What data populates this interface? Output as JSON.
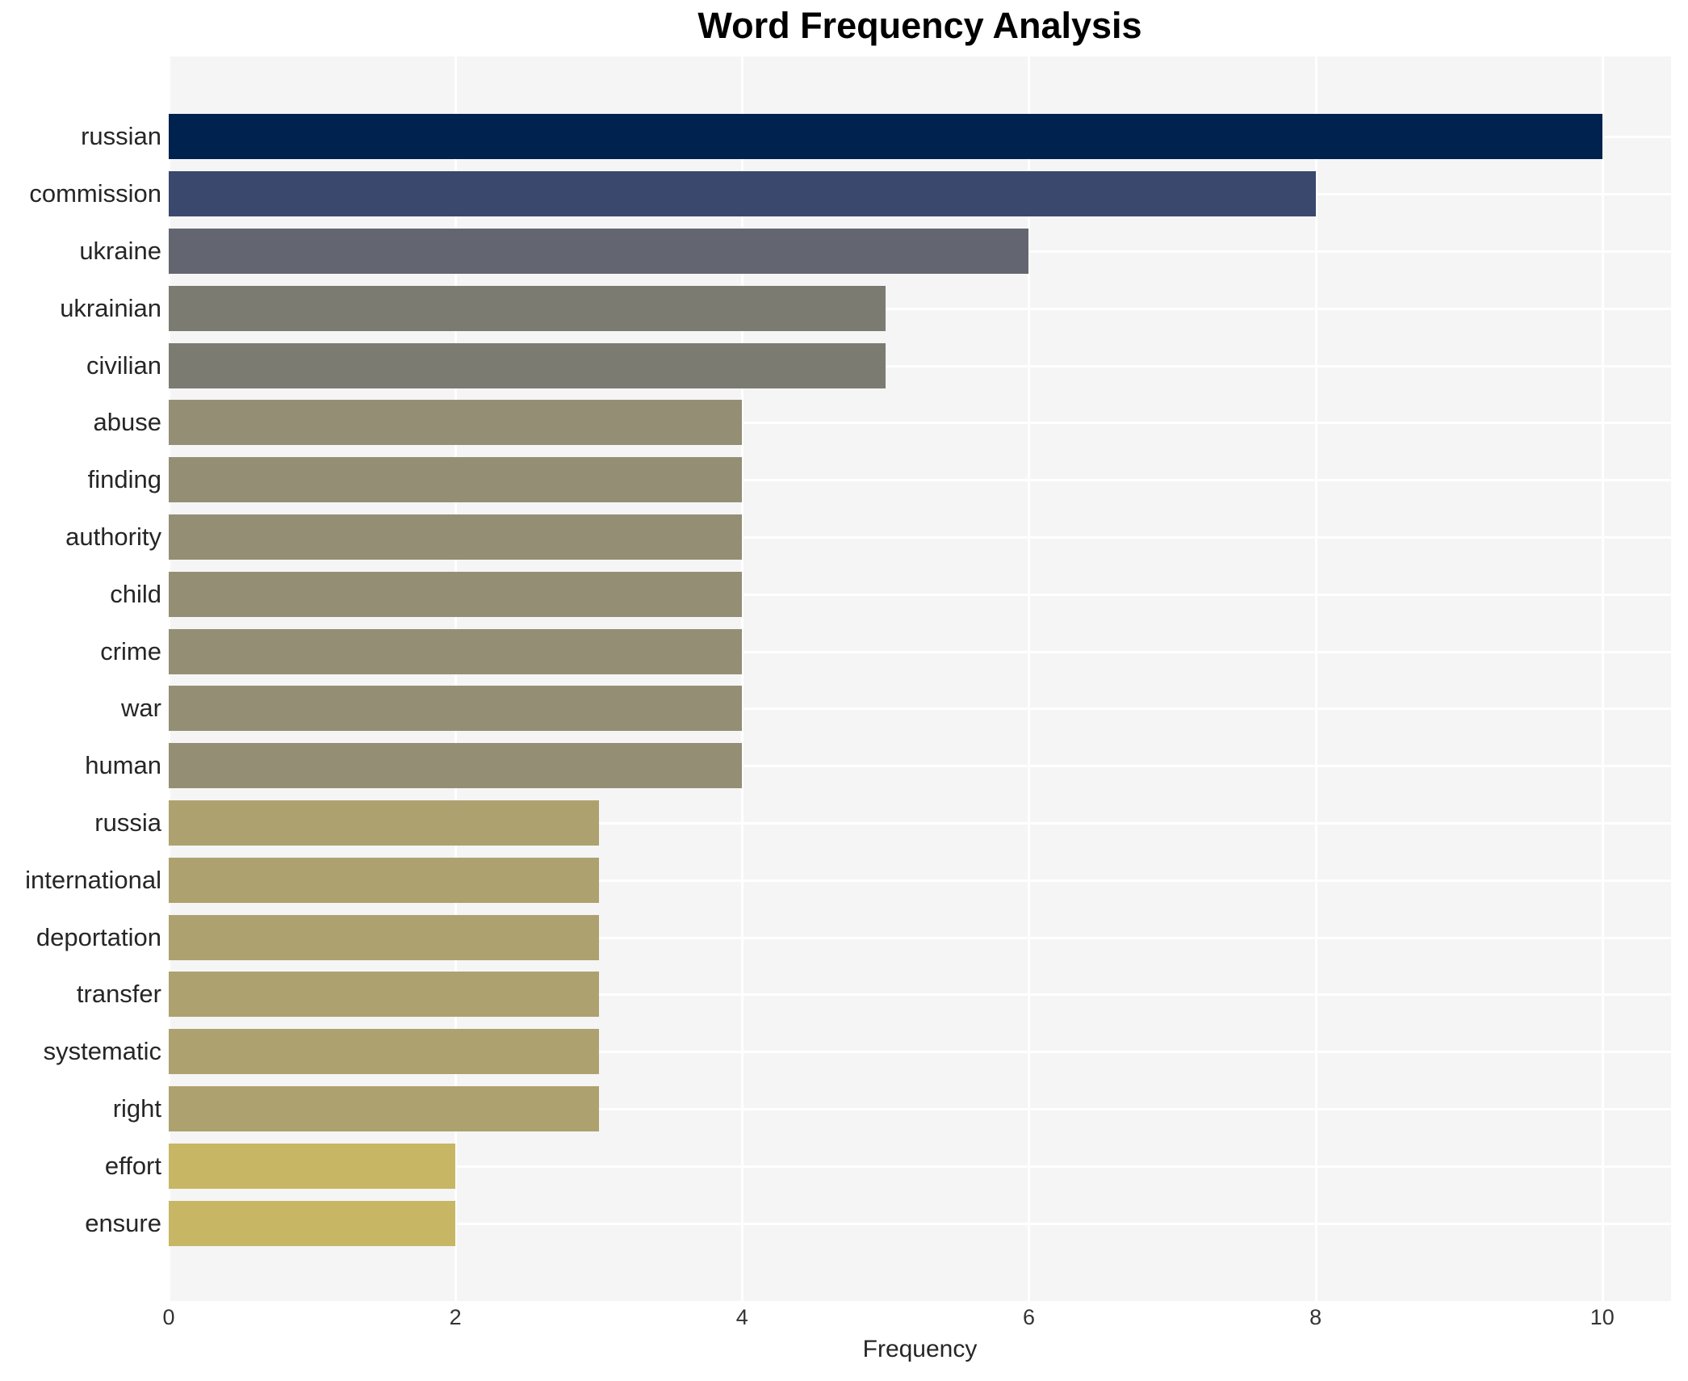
{
  "title": "Word Frequency Analysis",
  "xlabel": "Frequency",
  "chart_data": {
    "type": "bar",
    "orientation": "horizontal",
    "title": "Word Frequency Analysis",
    "xlabel": "Frequency",
    "categories": [
      "russian",
      "commission",
      "ukraine",
      "ukrainian",
      "civilian",
      "abuse",
      "finding",
      "authority",
      "child",
      "crime",
      "war",
      "human",
      "russia",
      "international",
      "deportation",
      "transfer",
      "systematic",
      "right",
      "effort",
      "ensure"
    ],
    "values": [
      10,
      8,
      6,
      5,
      5,
      4,
      4,
      4,
      4,
      4,
      4,
      4,
      3,
      3,
      3,
      3,
      3,
      3,
      2,
      2
    ],
    "bar_colors": [
      "#00224e",
      "#3a486e",
      "#636670",
      "#7b7b72",
      "#7b7b72",
      "#948f74",
      "#948f74",
      "#948f74",
      "#948f74",
      "#948f74",
      "#948f74",
      "#948f74",
      "#ada26f",
      "#ada26f",
      "#ada26f",
      "#ada26f",
      "#ada26f",
      "#ada26f",
      "#c7b664",
      "#c7b664"
    ],
    "x_ticks": [
      0,
      2,
      4,
      6,
      8,
      10
    ],
    "xlim": [
      0,
      10.48
    ],
    "grid": true,
    "legend": false,
    "plot_bg_color": "#f5f5f6",
    "grid_color": "#ffffff",
    "colormap": "cividis"
  }
}
